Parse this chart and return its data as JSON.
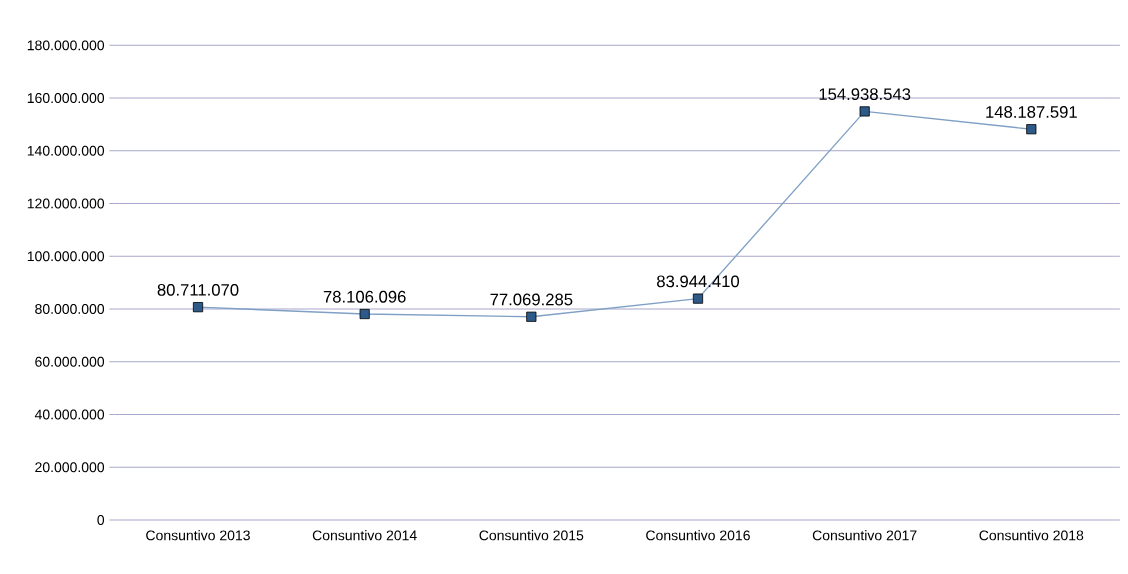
{
  "chart_data": {
    "type": "line",
    "categories": [
      "Consuntivo 2013",
      "Consuntivo 2014",
      "Consuntivo 2015",
      "Consuntivo 2016",
      "Consuntivo 2017",
      "Consuntivo 2018"
    ],
    "values": [
      80711070,
      78106096,
      77069285,
      83944410,
      154938543,
      148187591
    ],
    "value_labels": [
      "80.711.070",
      "78.106.096",
      "77.069.285",
      "83.944.410",
      "154.938.543",
      "148.187.591"
    ],
    "color": "#7f9fc4",
    "marker": "square",
    "line_style": "solid",
    "grid": "y",
    "ylim": [
      0,
      180000000
    ],
    "yticks": [
      {
        "value": 0,
        "label": "0"
      },
      {
        "value": 20000000,
        "label": "20.000.000"
      },
      {
        "value": 40000000,
        "label": "40.000.000"
      },
      {
        "value": 60000000,
        "label": "60.000.000"
      },
      {
        "value": 80000000,
        "label": "80.000.000"
      },
      {
        "value": 100000000,
        "label": "100.000.000"
      },
      {
        "value": 120000000,
        "label": "120.000.000"
      },
      {
        "value": 140000000,
        "label": "140.000.000"
      },
      {
        "value": 160000000,
        "label": "160.000.000"
      },
      {
        "value": 180000000,
        "label": "180.000.000"
      }
    ]
  }
}
